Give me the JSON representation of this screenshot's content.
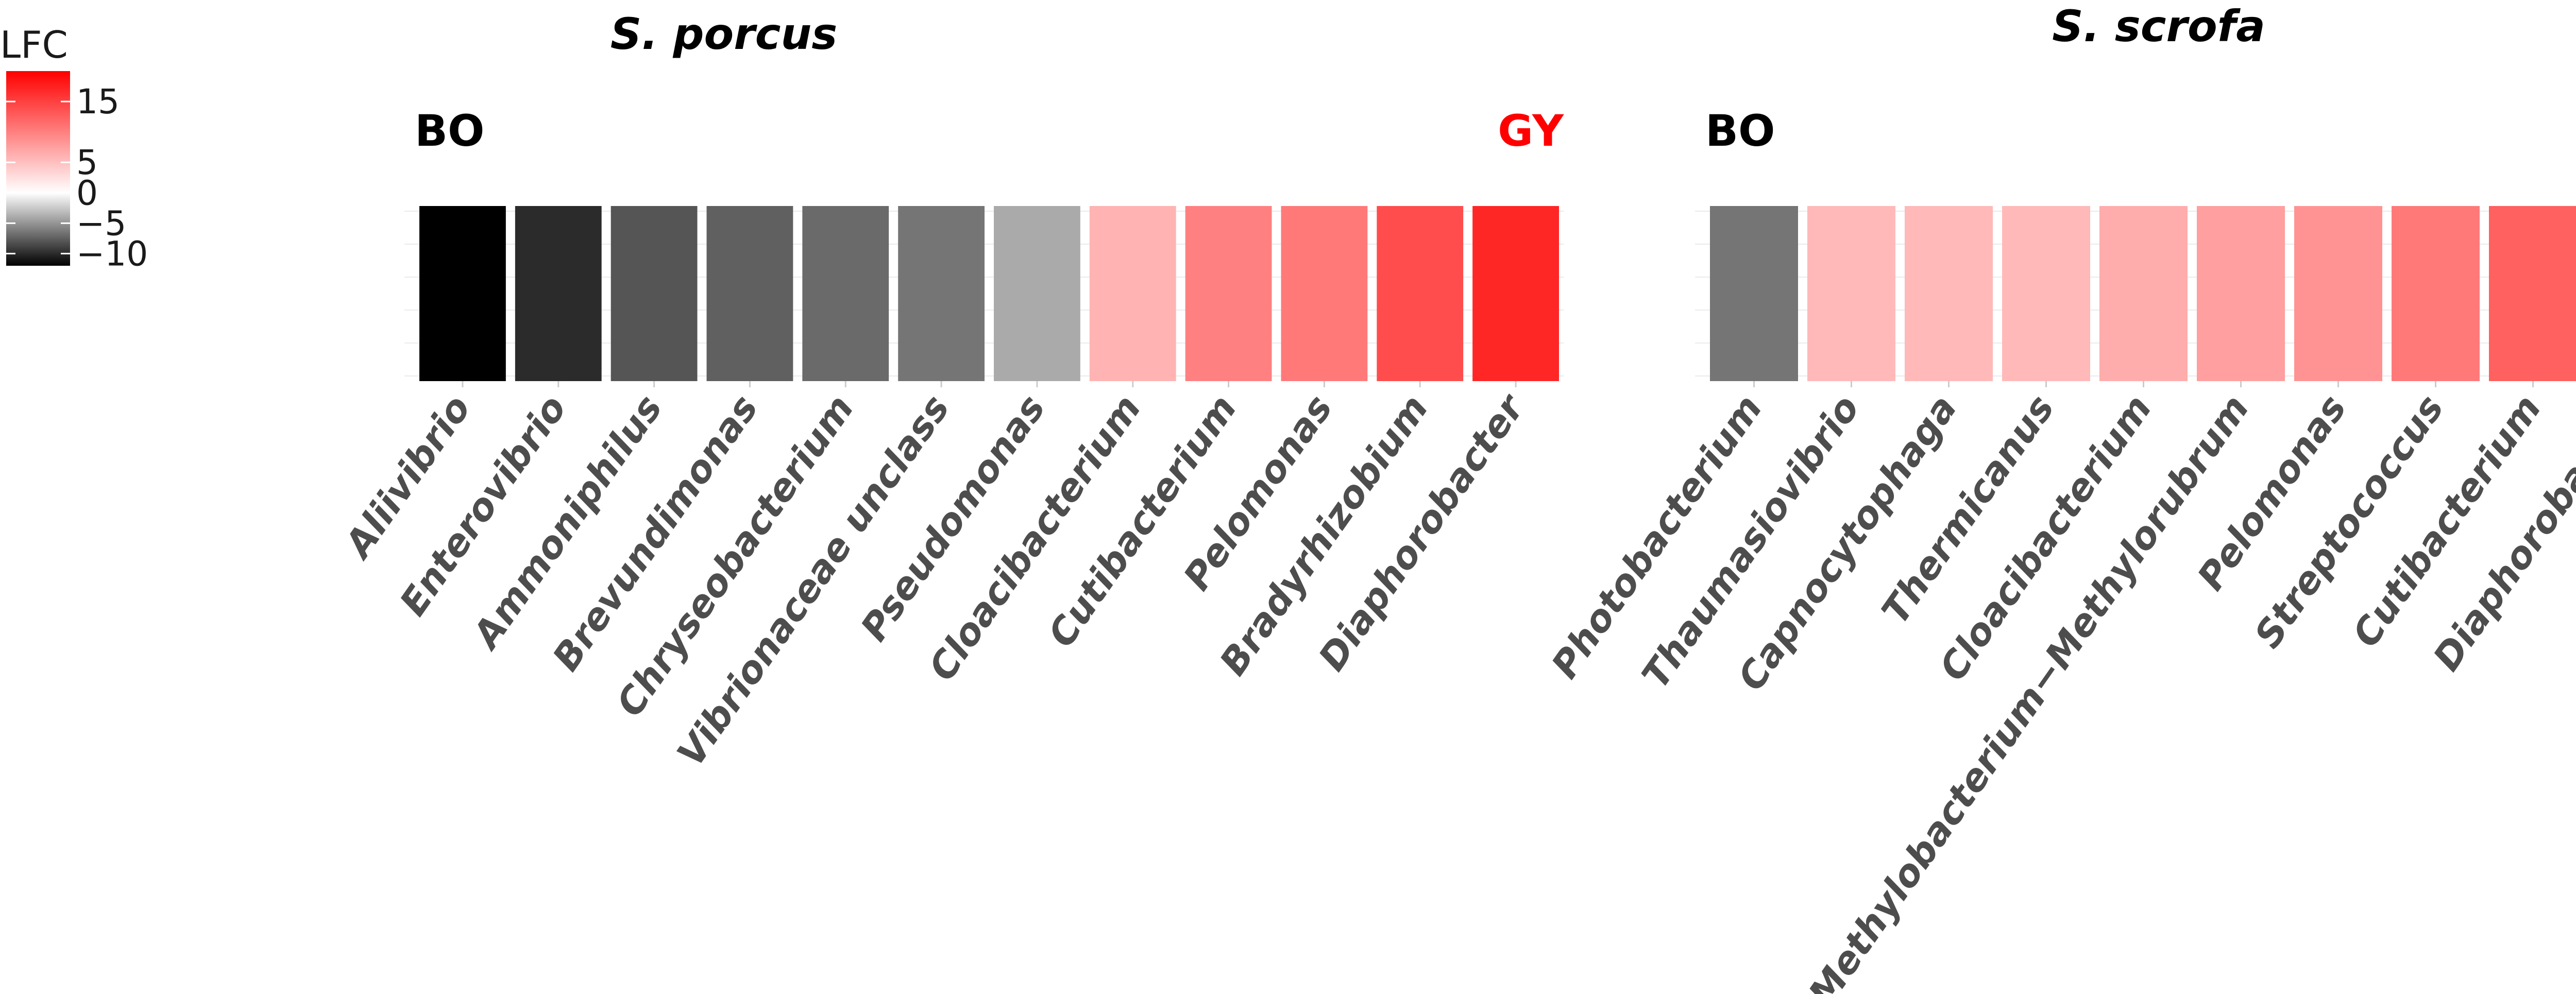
{
  "legend": {
    "title": "LFC",
    "ticks": [
      15,
      5,
      0,
      -5,
      -10
    ],
    "range": [
      -12,
      20
    ],
    "colors": {
      "low": "#000000",
      "mid": "#ffffff",
      "high": "#ff0000"
    }
  },
  "chart_data": [
    {
      "type": "heatmap",
      "title": "S. porcus",
      "left_label": "BO",
      "right_label": "GY",
      "left_label_color": "#000000",
      "right_label_color": "#ff0000",
      "categories": [
        "Aliivibrio",
        "Enterovibrio",
        "Ammoniphilus",
        "Brevundimonas",
        "Chryseobacterium",
        "Vibrionaceae unclass",
        "Pseudomonas",
        "Cloacibacterium",
        "Cutibacterium",
        "Pelomonas",
        "Bradyrhizobium",
        "Diaphorobacter"
      ],
      "values": [
        -12,
        -10,
        -8,
        -7.5,
        -7,
        -6.5,
        -4,
        6,
        10,
        10.5,
        14,
        17
      ]
    },
    {
      "type": "heatmap",
      "title": "S. scrofa",
      "left_label": "BO",
      "right_label": "GY",
      "left_label_color": "#000000",
      "right_label_color": "#ff0000",
      "categories": [
        "Photobacterium",
        "Thaumasiovibrio",
        "Capnocytophaga",
        "Thermicanus",
        "Cloacibacterium",
        "Methylobacterium−Methylorubrum",
        "Pelomonas",
        "Streptococcus",
        "Cutibacterium",
        "Diaphorobacter"
      ],
      "values": [
        -6.5,
        5.5,
        5.5,
        5.5,
        6.5,
        7.5,
        8.5,
        10.5,
        12.5,
        19
      ]
    }
  ]
}
